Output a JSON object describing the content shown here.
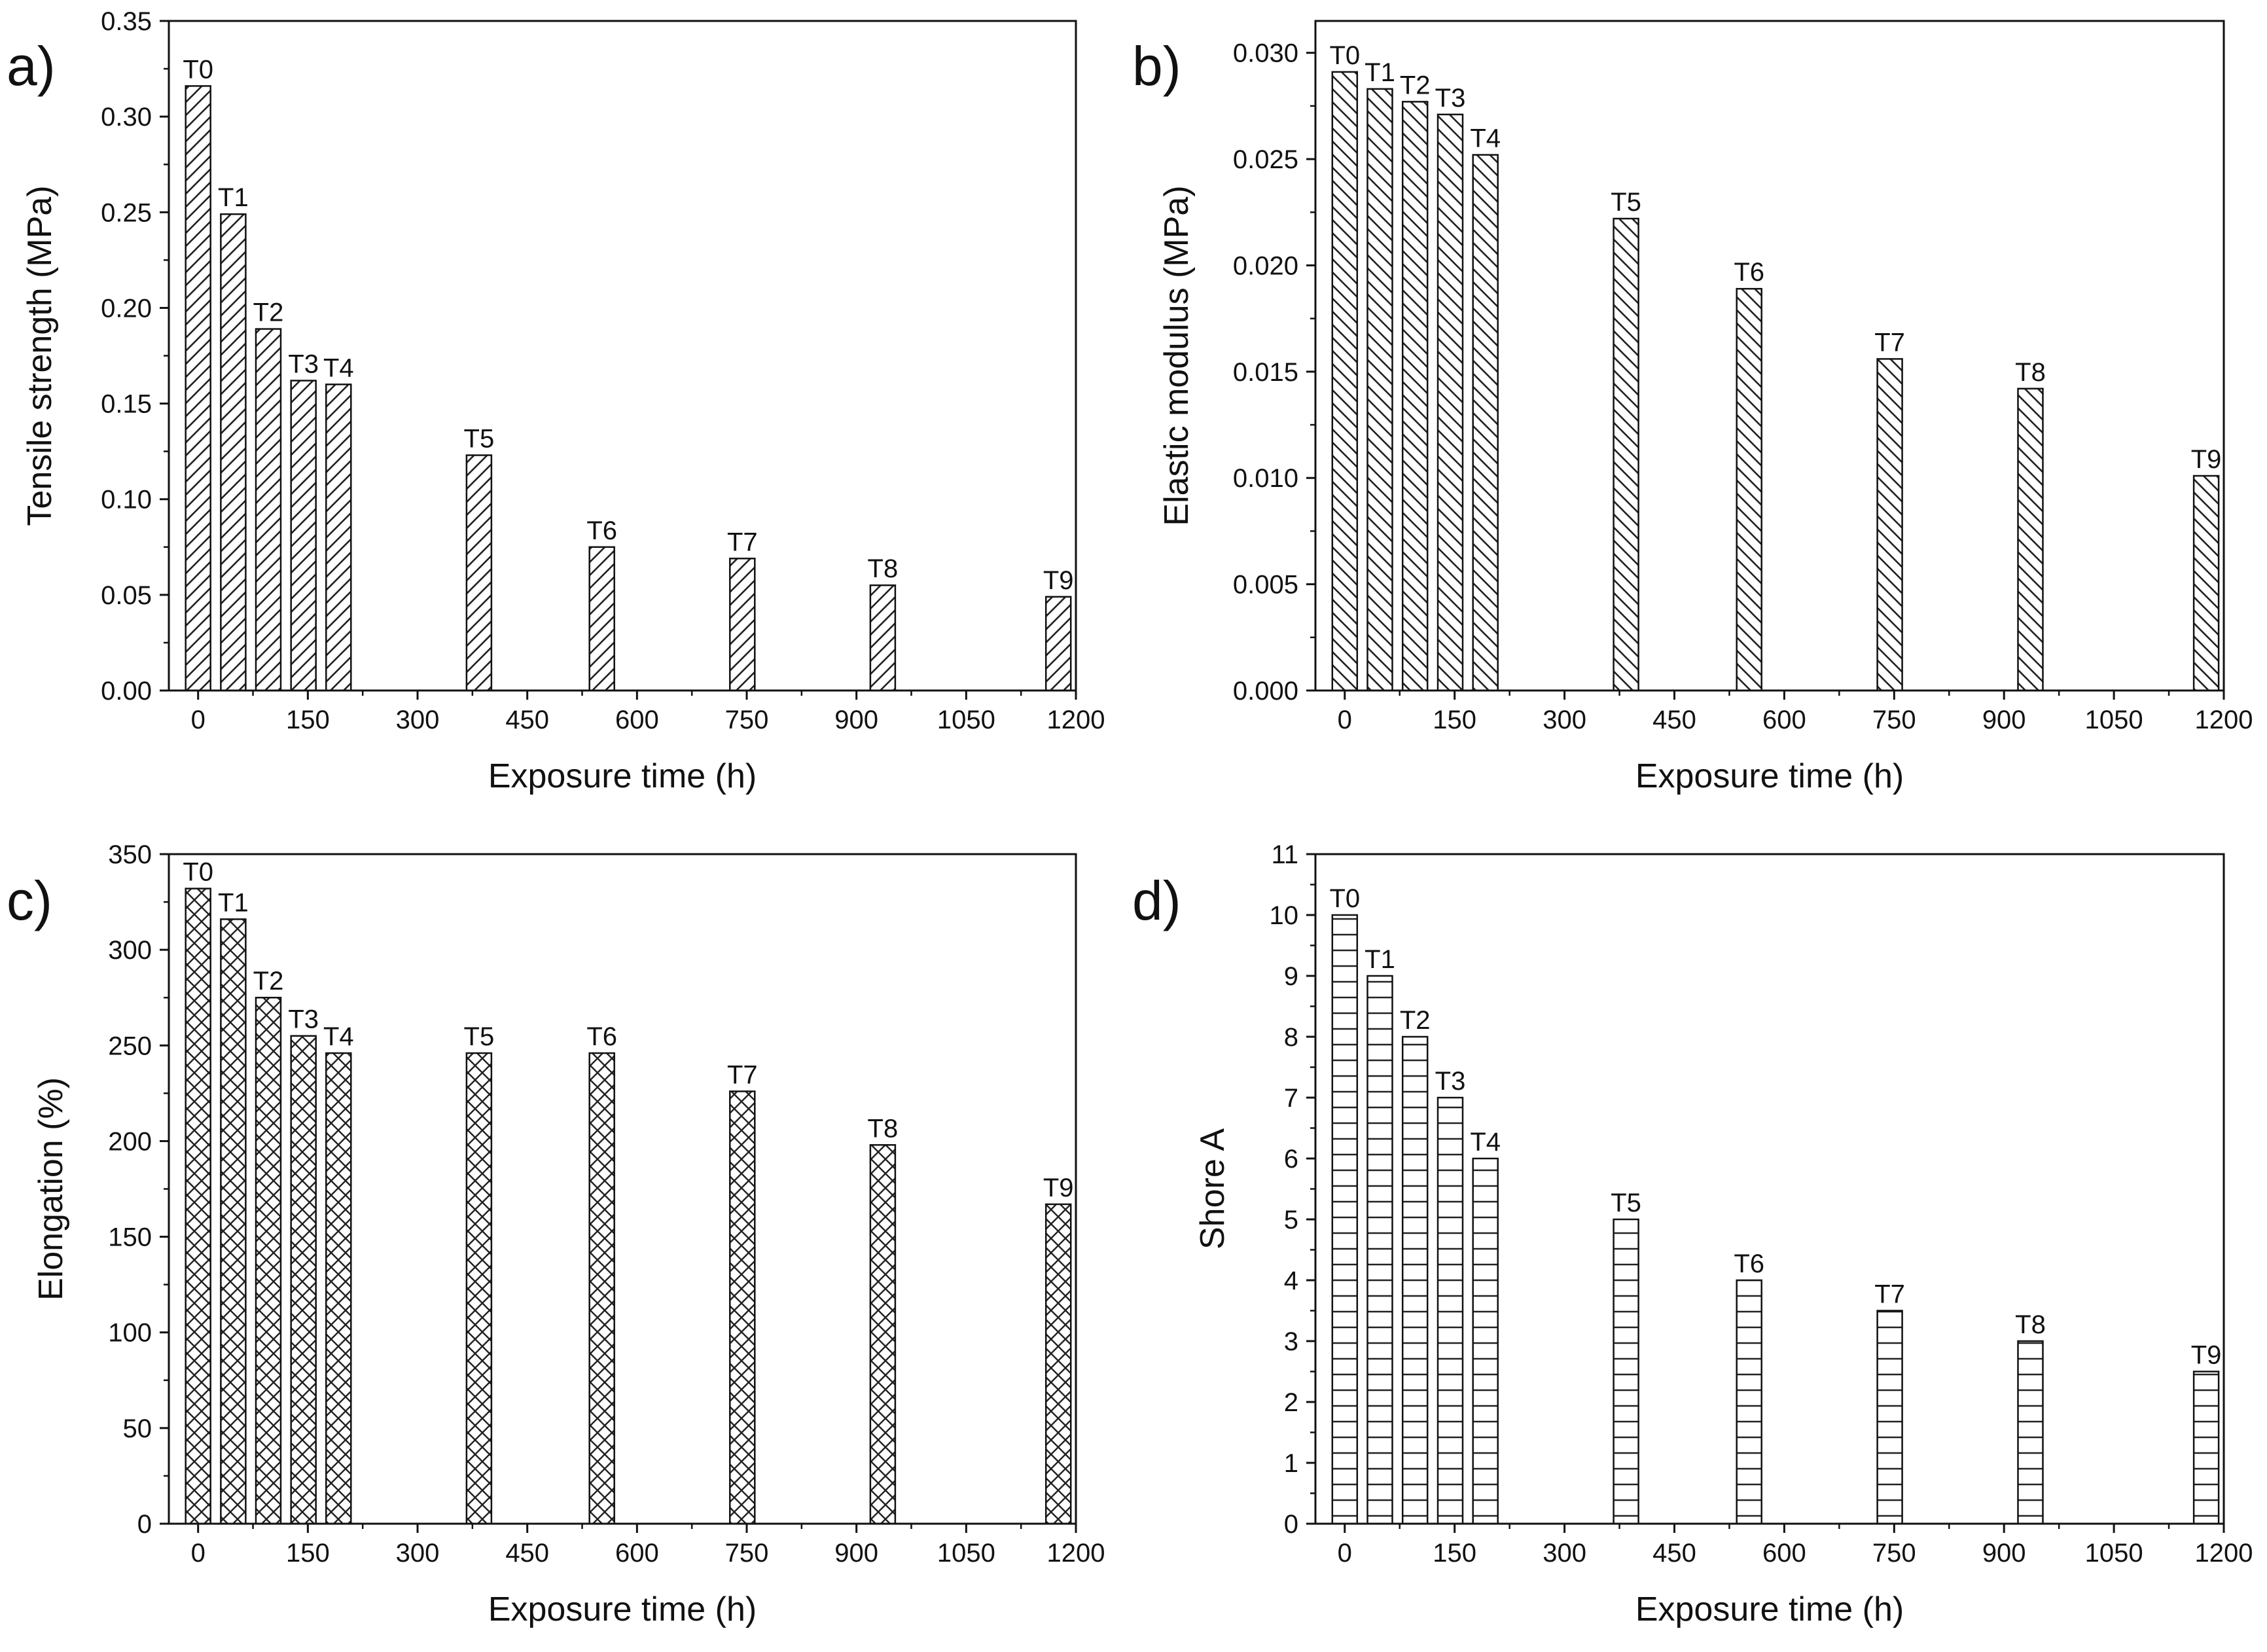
{
  "chart_data": [
    {
      "type": "bar",
      "panel_label": "a)",
      "title": "",
      "xlabel": "Exposure time (h)",
      "ylabel": "Tensile strength (MPa)",
      "xlim": [
        -40,
        1200
      ],
      "ylim": [
        0,
        0.35
      ],
      "x_ticks": [
        "0",
        "150",
        "300",
        "450",
        "600",
        "750",
        "900",
        "1050",
        "1200"
      ],
      "y_ticks": [
        "0.00",
        "0.05",
        "0.10",
        "0.15",
        "0.20",
        "0.25",
        "0.30",
        "0.35"
      ],
      "categories": [
        "T0",
        "T1",
        "T2",
        "T3",
        "T4",
        "T5",
        "T6",
        "T7",
        "T8",
        "T9"
      ],
      "x": [
        0,
        48,
        96,
        144,
        192,
        384,
        552,
        744,
        936,
        1176
      ],
      "values": [
        0.316,
        0.249,
        0.189,
        0.162,
        0.16,
        0.123,
        0.075,
        0.069,
        0.055,
        0.049
      ],
      "pattern": "diagonal",
      "grid": false
    },
    {
      "type": "bar",
      "panel_label": "b)",
      "title": "",
      "xlabel": "Exposure time (h)",
      "ylabel": "Elastic modulus (MPa)",
      "xlim": [
        -40,
        1200
      ],
      "ylim": [
        0,
        0.0315
      ],
      "x_ticks": [
        "0",
        "150",
        "300",
        "450",
        "600",
        "750",
        "900",
        "1050",
        "1200"
      ],
      "y_ticks": [
        "0.000",
        "0.005",
        "0.010",
        "0.015",
        "0.020",
        "0.025",
        "0.030"
      ],
      "categories": [
        "T0",
        "T1",
        "T2",
        "T3",
        "T4",
        "T5",
        "T6",
        "T7",
        "T8",
        "T9"
      ],
      "x": [
        0,
        48,
        96,
        144,
        192,
        384,
        552,
        744,
        936,
        1176
      ],
      "values": [
        0.0291,
        0.0283,
        0.0277,
        0.0271,
        0.0252,
        0.0222,
        0.0189,
        0.0156,
        0.0142,
        0.0101
      ],
      "pattern": "diagonal-reverse",
      "grid": false
    },
    {
      "type": "bar",
      "panel_label": "c)",
      "title": "",
      "xlabel": "Exposure time (h)",
      "ylabel": "Elongation (%)",
      "xlim": [
        -40,
        1200
      ],
      "ylim": [
        0,
        350
      ],
      "x_ticks": [
        "0",
        "150",
        "300",
        "450",
        "600",
        "750",
        "900",
        "1050",
        "1200"
      ],
      "y_ticks": [
        "0",
        "50",
        "100",
        "150",
        "200",
        "250",
        "300",
        "350"
      ],
      "categories": [
        "T0",
        "T1",
        "T2",
        "T3",
        "T4",
        "T5",
        "T6",
        "T7",
        "T8",
        "T9"
      ],
      "x": [
        0,
        48,
        96,
        144,
        192,
        384,
        552,
        744,
        936,
        1176
      ],
      "values": [
        332,
        316,
        275,
        255,
        246,
        246,
        246,
        226,
        198,
        167
      ],
      "pattern": "crosshatch",
      "grid": false
    },
    {
      "type": "bar",
      "panel_label": "d)",
      "title": "",
      "xlabel": "Exposure time (h)",
      "ylabel": "Shore A",
      "xlim": [
        -40,
        1200
      ],
      "ylim": [
        0,
        11
      ],
      "x_ticks": [
        "0",
        "150",
        "300",
        "450",
        "600",
        "750",
        "900",
        "1050",
        "1200"
      ],
      "y_ticks": [
        "0",
        "1",
        "2",
        "3",
        "4",
        "5",
        "6",
        "7",
        "8",
        "9",
        "10",
        "11"
      ],
      "categories": [
        "T0",
        "T1",
        "T2",
        "T3",
        "T4",
        "T5",
        "T6",
        "T7",
        "T8",
        "T9"
      ],
      "x": [
        0,
        48,
        96,
        144,
        192,
        384,
        552,
        744,
        936,
        1176
      ],
      "values": [
        10,
        9,
        8,
        7,
        6,
        5,
        4,
        3.5,
        3,
        2.5
      ],
      "pattern": "horizontal",
      "grid": false
    }
  ]
}
